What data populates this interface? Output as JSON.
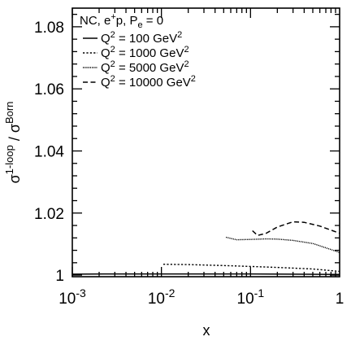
{
  "chart_data": {
    "type": "line",
    "title": "",
    "xlabel": "x",
    "ylabel": "σ1-loop / σBorn",
    "ylabel_parts": {
      "base1": "σ",
      "sup1": "1-loop",
      "sep": " / ",
      "base2": "σ",
      "sup2": "Born"
    },
    "xscale": "log",
    "xlim": [
      0.001,
      1
    ],
    "ylim": [
      0.9995,
      1.086
    ],
    "grid": false,
    "legend_position": "top-left",
    "x_ticks": [
      {
        "value": 0.001,
        "base": "10",
        "exp": "-3"
      },
      {
        "value": 0.01,
        "base": "10",
        "exp": "-2"
      },
      {
        "value": 0.1,
        "base": "10",
        "exp": "-1"
      },
      {
        "value": 1,
        "base": "1",
        "exp": ""
      }
    ],
    "y_ticks": [
      {
        "value": 1.0,
        "label": "1"
      },
      {
        "value": 1.02,
        "label": "1.02"
      },
      {
        "value": 1.04,
        "label": "1.04"
      },
      {
        "value": 1.06,
        "label": "1.06"
      },
      {
        "value": 1.08,
        "label": "1.08"
      }
    ],
    "legend_header": {
      "prefix": "NC, e",
      "sup": "+",
      "mid": "p, P",
      "sub": "e",
      "suffix": " = 0"
    },
    "series": [
      {
        "name": "Q2 = 100 GeV2",
        "q2": "100",
        "style": "solid",
        "x": [
          0.001,
          0.003,
          0.01,
          0.03,
          0.1,
          0.3,
          1.0
        ],
        "y": [
          1.0003,
          1.0004,
          1.0004,
          1.0004,
          1.0004,
          1.0003,
          1.0002
        ]
      },
      {
        "name": "Q2 = 1000 GeV2",
        "q2": "1000",
        "style": "dotted",
        "x": [
          0.0105,
          0.02,
          0.05,
          0.1,
          0.2,
          0.5,
          1.0
        ],
        "y": [
          1.0035,
          1.0034,
          1.0031,
          1.0028,
          1.0025,
          1.002,
          1.0012
        ]
      },
      {
        "name": "Q2 = 5000 GeV2",
        "q2": "5000",
        "style": "densely-dotted",
        "x": [
          0.053,
          0.07,
          0.1,
          0.15,
          0.2,
          0.3,
          0.5,
          0.7,
          1.0
        ],
        "y": [
          1.0122,
          1.0114,
          1.0115,
          1.0117,
          1.0116,
          1.0112,
          1.0102,
          1.0088,
          1.0073
        ]
      },
      {
        "name": "Q2 = 10000 GeV2",
        "q2": "10000",
        "style": "dashed",
        "x": [
          0.105,
          0.12,
          0.15,
          0.2,
          0.3,
          0.4,
          0.6,
          1.0
        ],
        "y": [
          1.0143,
          1.0128,
          1.0135,
          1.0155,
          1.0172,
          1.017,
          1.0158,
          1.0135
        ]
      }
    ]
  }
}
